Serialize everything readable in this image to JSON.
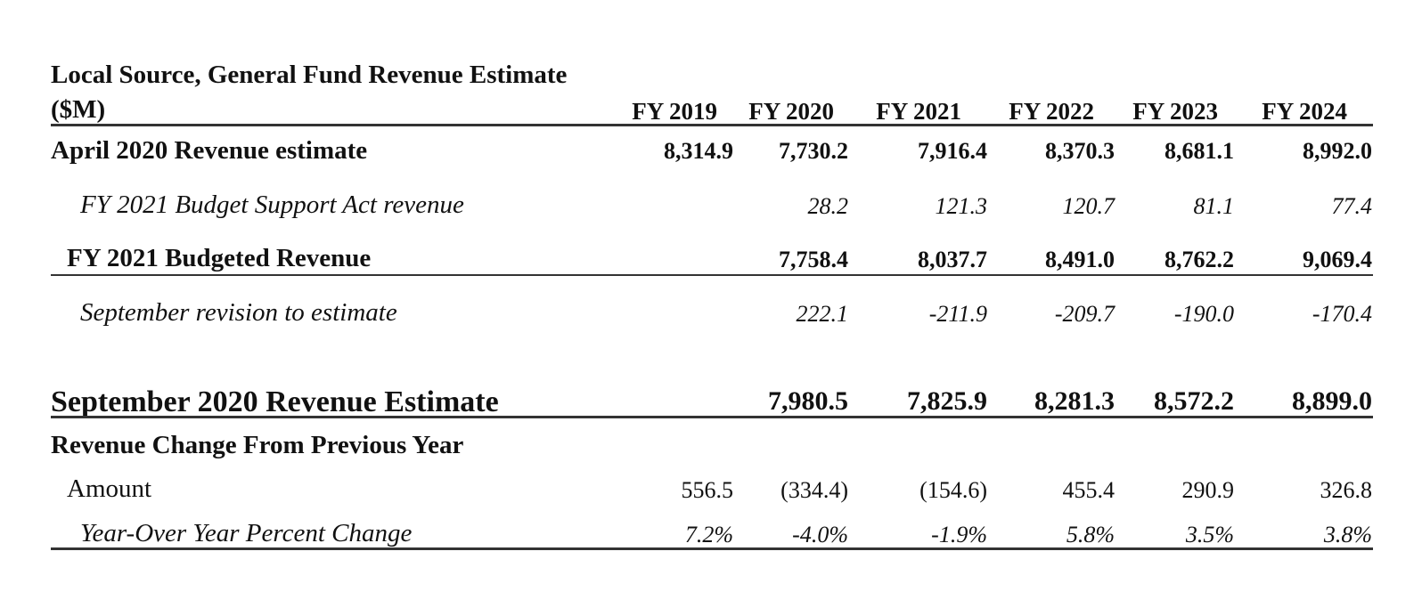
{
  "title": {
    "line1": "Local Source, General Fund Revenue Estimate",
    "line2": "($M)"
  },
  "years": [
    "FY 2019",
    "FY 2020",
    "FY 2021",
    "FY 2022",
    "FY 2023",
    "FY 2024"
  ],
  "rows": {
    "april": {
      "label": "April 2020 Revenue estimate",
      "values": [
        "8,314.9",
        "7,730.2",
        "7,916.4",
        "8,370.3",
        "8,681.1",
        "8,992.0"
      ]
    },
    "bsa": {
      "label": "FY 2021 Budget Support Act revenue",
      "values": [
        "28.2",
        "121.3",
        "120.7",
        "81.1",
        "77.4"
      ]
    },
    "budgeted": {
      "label": "FY 2021 Budgeted Revenue",
      "values": [
        "7,758.4",
        "8,037.7",
        "8,491.0",
        "8,762.2",
        "9,069.4"
      ]
    },
    "revision": {
      "label": "September revision to estimate",
      "values": [
        "222.1",
        "-211.9",
        "-209.7",
        "-190.0",
        "-170.4"
      ]
    },
    "september": {
      "label": "September 2020 Revenue Estimate",
      "values": [
        "7,980.5",
        "7,825.9",
        "8,281.3",
        "8,572.2",
        "8,899.0"
      ]
    },
    "change_header": {
      "label": "Revenue Change From Previous Year"
    },
    "amount": {
      "label": "Amount",
      "values": [
        "556.5",
        "(334.4)",
        "(154.6)",
        "455.4",
        "290.9",
        "326.8"
      ]
    },
    "pct": {
      "label": "Year-Over Year Percent Change",
      "values": [
        "7.2%",
        "-4.0%",
        "-1.9%",
        "5.8%",
        "3.5%",
        "3.8%"
      ]
    }
  }
}
